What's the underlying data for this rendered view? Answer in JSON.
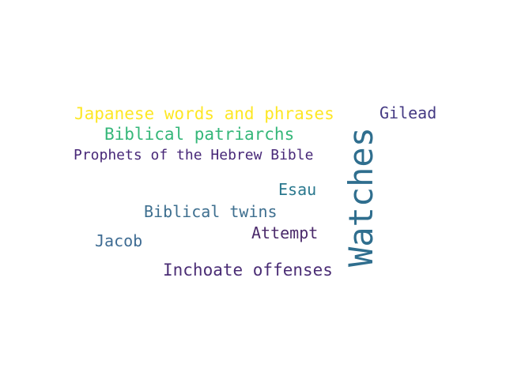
{
  "words": [
    {
      "text": "Japanese words and phrases",
      "color": "#fde725"
    },
    {
      "text": "Biblical patriarchs",
      "color": "#35b779"
    },
    {
      "text": "Prophets of the Hebrew Bible",
      "color": "#482878"
    },
    {
      "text": "Gilead",
      "color": "#443983"
    },
    {
      "text": "Esau",
      "color": "#2a788e"
    },
    {
      "text": "Biblical twins",
      "color": "#3e6f8f"
    },
    {
      "text": "Attempt",
      "color": "#4b2a6b"
    },
    {
      "text": "Jacob",
      "color": "#3f6c93"
    },
    {
      "text": "Inchoate offenses",
      "color": "#4a2c74"
    },
    {
      "text": "Watches",
      "color": "#2f6e8e",
      "orientation": "vertical"
    }
  ]
}
